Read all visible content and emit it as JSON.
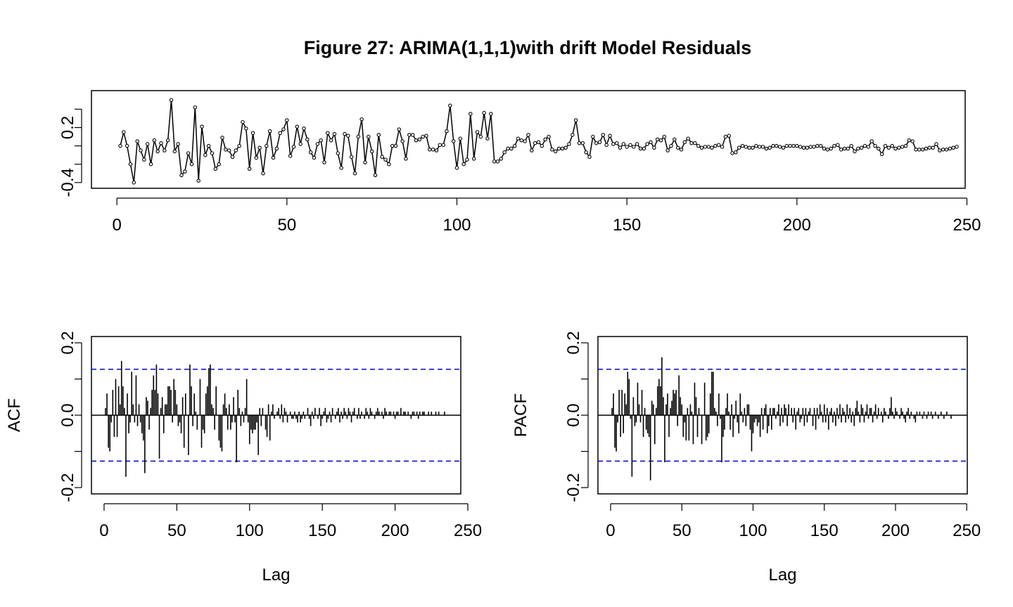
{
  "figure": {
    "title": "Figure 27: ARIMA(1,1,1)with drift Model Residuals"
  },
  "chart_data": [
    {
      "type": "line",
      "title": "",
      "xlabel": "",
      "ylabel": "",
      "xlim": [
        1,
        241
      ],
      "ylim": [
        -0.42,
        0.56
      ],
      "x_ticks": [
        0,
        50,
        100,
        150,
        200,
        250
      ],
      "y_ticks": [
        -0.4,
        -0.2,
        0.0,
        0.2,
        0.4
      ],
      "y_tick_labels": [
        "-0.4",
        "",
        "",
        "0.2",
        ""
      ],
      "grid": false,
      "markers": "open-circle",
      "series": [
        {
          "values": [
            0.0,
            0.15,
            0.0,
            -0.2,
            -0.4,
            0.05,
            -0.05,
            -0.15,
            0.02,
            -0.2,
            0.06,
            -0.06,
            0.03,
            -0.05,
            0.06,
            0.5,
            -0.06,
            0.02,
            -0.32,
            -0.28,
            -0.08,
            -0.2,
            0.42,
            -0.38,
            0.21,
            -0.1,
            0.0,
            -0.08,
            -0.25,
            -0.2,
            0.09,
            -0.04,
            -0.05,
            -0.12,
            -0.05,
            0.0,
            0.26,
            0.19,
            -0.25,
            0.14,
            -0.13,
            -0.02,
            -0.3,
            0.0,
            0.16,
            -0.13,
            -0.03,
            0.14,
            0.18,
            0.28,
            -0.11,
            -0.01,
            0.21,
            0.02,
            0.19,
            0.07,
            -0.07,
            -0.13,
            0.02,
            0.06,
            -0.18,
            0.14,
            0.06,
            0.13,
            -0.08,
            -0.24,
            0.13,
            0.11,
            -0.12,
            -0.3,
            0.1,
            0.29,
            -0.18,
            0.1,
            -0.06,
            -0.32,
            0.12,
            -0.12,
            -0.15,
            -0.2,
            0.0,
            0.0,
            0.18,
            0.05,
            -0.14,
            0.12,
            0.12,
            0.06,
            0.07,
            0.1,
            0.11,
            -0.04,
            -0.04,
            -0.05,
            0.01,
            0.01,
            0.16,
            0.44,
            0.05,
            -0.24,
            0.08,
            -0.2,
            -0.15,
            0.35,
            -0.14,
            0.15,
            0.1,
            0.36,
            0.08,
            0.35,
            -0.17,
            -0.17,
            -0.14,
            -0.07,
            -0.03,
            -0.03,
            0.0,
            0.08,
            0.06,
            0.05,
            0.12,
            -0.05,
            0.03,
            0.04,
            0.0,
            0.07,
            0.1,
            -0.04,
            -0.06,
            -0.03,
            -0.03,
            -0.02,
            0.02,
            0.12,
            0.28,
            0.03,
            0.03,
            -0.07,
            -0.12,
            0.1,
            0.03,
            0.04,
            0.12,
            0.01,
            0.11,
            0.02,
            0.03,
            -0.02,
            0.02,
            -0.01,
            0.01,
            -0.01,
            0.02,
            -0.03,
            -0.03,
            0.02,
            0.04,
            -0.02,
            0.07,
            0.06,
            0.1,
            -0.05,
            0.0,
            0.07,
            -0.02,
            -0.04,
            0.04,
            0.08,
            0.03,
            0.03,
            0.0,
            -0.02,
            -0.01,
            -0.01,
            -0.02,
            0.0,
            0.01,
            -0.01,
            0.1,
            0.11,
            -0.08,
            -0.07,
            -0.02,
            0.0,
            -0.01,
            -0.02,
            -0.02,
            0.0,
            -0.01,
            -0.01,
            -0.03,
            -0.02,
            0.0,
            0.0,
            -0.01,
            -0.02,
            0.0,
            0.0,
            0.0,
            0.0,
            -0.01,
            -0.02,
            -0.02,
            -0.01,
            -0.01,
            0.0,
            0.0,
            -0.03,
            -0.04,
            -0.03,
            0.0,
            0.01,
            -0.04,
            -0.03,
            -0.03,
            0.0,
            -0.06,
            -0.03,
            -0.02,
            0.0,
            -0.01,
            0.05,
            0.0,
            -0.03,
            -0.09,
            0.0,
            -0.02,
            0.0,
            -0.03,
            -0.02,
            -0.01,
            0.0,
            0.06,
            0.05,
            -0.04,
            -0.04,
            -0.04,
            -0.03,
            -0.02,
            -0.02,
            0.02,
            -0.05,
            -0.04,
            -0.04,
            -0.03,
            -0.02,
            -0.01
          ]
        }
      ]
    },
    {
      "type": "bar",
      "title": "",
      "xlabel": "Lag",
      "ylabel": "ACF",
      "xlim": [
        1,
        235
      ],
      "ylim": [
        -0.2,
        0.2
      ],
      "x_ticks": [
        0,
        50,
        100,
        150,
        200,
        250
      ],
      "y_ticks": [
        -0.2,
        -0.1,
        0.0,
        0.1,
        0.2
      ],
      "y_tick_labels": [
        "-0.2",
        "",
        "0.0",
        "",
        "0.2"
      ],
      "confidence_band": 0.127,
      "confidence_color": "#0000cc",
      "grid": false,
      "values": [
        0.02,
        0.06,
        -0.09,
        -0.1,
        -0.02,
        0.07,
        -0.06,
        0.1,
        -0.06,
        0.08,
        0.03,
        0.15,
        0.08,
        0.02,
        -0.17,
        0.06,
        -0.05,
        -0.02,
        0.12,
        0.03,
        -0.02,
        0.11,
        -0.03,
        0.03,
        -0.02,
        -0.05,
        -0.07,
        -0.16,
        0.05,
        0.04,
        -0.04,
        0.02,
        0.07,
        0.11,
        0.07,
        0.14,
        0.06,
        -0.12,
        0.02,
        0.05,
        -0.05,
        0.03,
        0.03,
        0.08,
        0.08,
        0.07,
        -0.02,
        0.1,
        0.07,
        0.03,
        -0.03,
        -0.02,
        -0.05,
        0.05,
        -0.09,
        0.06,
        0.0,
        -0.11,
        0.14,
        0.08,
        -0.03,
        0.06,
        0.01,
        -0.04,
        0.0,
        0.1,
        -0.09,
        -0.04,
        -0.05,
        0.06,
        0.08,
        0.13,
        0.14,
        0.03,
        0.02,
        -0.04,
        0.08,
        0.0,
        -0.07,
        -0.09,
        -0.1,
        0.03,
        0.06,
        0.02,
        -0.04,
        0.03,
        -0.04,
        -0.02,
        0.05,
        -0.02,
        -0.13,
        0.07,
        0.02,
        -0.03,
        0.01,
        -0.02,
        0.02,
        0.1,
        -0.02,
        -0.08,
        -0.04,
        -0.05,
        -0.04,
        -0.04,
        -0.02,
        -0.11,
        0.02,
        -0.03,
        0.02,
        0.0,
        -0.04,
        -0.06,
        0.03,
        -0.07,
        0.01,
        0.03,
        -0.01,
        0.0,
        0.01,
        0.02,
        -0.01,
        0.03,
        -0.02,
        0.02,
        0.01,
        -0.02,
        0.0,
        0.01,
        -0.01,
        -0.01,
        0.01,
        -0.01,
        -0.02,
        0.01,
        -0.02,
        -0.01,
        0.01,
        -0.01,
        0.0,
        0.02,
        -0.01,
        -0.03,
        0.01,
        -0.01,
        0.02,
        0.0,
        -0.01,
        0.02,
        -0.03,
        -0.01,
        0.01,
        0.02,
        -0.02,
        -0.01,
        0.01,
        -0.02,
        0.02,
        0.0,
        -0.01,
        0.01,
        0.02,
        -0.02,
        0.01,
        -0.01,
        0.02,
        0.01,
        -0.01,
        0.02,
        0.01,
        -0.02,
        0.01,
        0.02,
        0.0,
        -0.01,
        0.02,
        -0.01,
        0.01,
        0.0,
        -0.01,
        0.02,
        0.01,
        -0.01,
        0.02,
        0.01,
        0.0,
        -0.01,
        0.01,
        0.02,
        0.01,
        0.0,
        0.01,
        -0.01,
        0.02,
        0.01,
        0.0,
        0.01,
        0.01,
        0.0,
        0.01,
        -0.01,
        0.01,
        0.01,
        0.0,
        0.02,
        0.0,
        0.01,
        0.01,
        0.0,
        0.01,
        0.0,
        -0.01,
        0.01,
        0.01,
        0.0,
        0.01,
        -0.01,
        0.01,
        0.0,
        0.01,
        0.01,
        0.0,
        0.0,
        0.01,
        0.0,
        0.01,
        0.0,
        0.0,
        0.01,
        0.0,
        0.01,
        0.0,
        0.0,
        0.0,
        0.01,
        0.0,
        0.0
      ]
    },
    {
      "type": "bar",
      "title": "",
      "xlabel": "Lag",
      "ylabel": "PACF",
      "xlim": [
        1,
        240
      ],
      "ylim": [
        -0.2,
        0.2
      ],
      "x_ticks": [
        0,
        50,
        100,
        150,
        200,
        250
      ],
      "y_ticks": [
        -0.2,
        -0.1,
        0.0,
        0.1,
        0.2
      ],
      "y_tick_labels": [
        "-0.2",
        "",
        "0.0",
        "",
        "0.2"
      ],
      "confidence_band": 0.127,
      "confidence_color": "#0000cc",
      "grid": false,
      "values": [
        0.02,
        0.06,
        -0.09,
        -0.1,
        -0.02,
        0.07,
        -0.06,
        0.07,
        -0.05,
        0.06,
        0.03,
        0.12,
        0.1,
        -0.01,
        -0.17,
        0.05,
        -0.03,
        -0.02,
        0.09,
        0.03,
        -0.02,
        0.07,
        -0.06,
        0.02,
        -0.04,
        -0.05,
        -0.06,
        -0.18,
        0.04,
        0.03,
        -0.08,
        0.02,
        0.08,
        0.1,
        0.08,
        0.16,
        0.05,
        -0.13,
        0.03,
        0.06,
        -0.06,
        0.02,
        0.04,
        0.07,
        0.06,
        0.07,
        -0.03,
        0.11,
        0.05,
        0.03,
        -0.06,
        -0.02,
        -0.07,
        0.02,
        -0.07,
        0.03,
        0.01,
        -0.08,
        0.09,
        0.05,
        -0.06,
        0.02,
        0.0,
        -0.08,
        0.0,
        0.09,
        -0.07,
        -0.06,
        -0.05,
        0.06,
        0.12,
        0.12,
        0.02,
        0.01,
        -0.03,
        0.06,
        -0.01,
        -0.13,
        -0.06,
        -0.04,
        0.02,
        0.06,
        0.01,
        -0.04,
        0.03,
        -0.06,
        -0.01,
        0.04,
        -0.02,
        -0.05,
        0.06,
        0.01,
        -0.02,
        0.02,
        -0.03,
        0.03,
        0.03,
        -0.04,
        -0.1,
        -0.05,
        -0.02,
        -0.01,
        -0.03,
        -0.02,
        -0.06,
        0.02,
        -0.04,
        0.02,
        0.03,
        -0.05,
        -0.03,
        0.02,
        -0.04,
        0.02,
        0.02,
        -0.01,
        0.01,
        0.03,
        -0.03,
        0.02,
        -0.02,
        0.03,
        0.02,
        -0.03,
        0.03,
        0.0,
        0.02,
        -0.02,
        0.02,
        -0.04,
        0.01,
        0.02,
        -0.02,
        -0.01,
        0.02,
        -0.03,
        0.02,
        -0.02,
        0.01,
        0.02,
        0.0,
        -0.03,
        0.02,
        -0.04,
        0.02,
        -0.01,
        0.03,
        0.01,
        -0.02,
        0.03,
        -0.02,
        0.02,
        -0.04,
        0.01,
        0.02,
        -0.02,
        0.01,
        -0.03,
        0.02,
        -0.01,
        0.03,
        -0.02,
        0.02,
        0.01,
        -0.02,
        0.03,
        -0.01,
        0.02,
        -0.02,
        0.01,
        -0.03,
        0.02,
        0.04,
        0.01,
        -0.02,
        0.03,
        0.02,
        -0.02,
        0.01,
        0.03,
        -0.01,
        0.02,
        0.02,
        -0.02,
        0.01,
        0.03,
        -0.01,
        0.02,
        0.0,
        0.01,
        -0.02,
        0.02,
        0.01,
        0.0,
        -0.01,
        0.02,
        0.05,
        0.01,
        -0.01,
        0.02,
        0.01,
        0.0,
        -0.01,
        0.02,
        0.01,
        -0.01,
        -0.02,
        0.01,
        0.02,
        -0.01,
        0.01,
        0.0,
        -0.01,
        -0.02,
        0.01,
        0.0,
        0.01,
        0.0,
        -0.01,
        0.01,
        0.0,
        -0.01,
        0.01,
        0.0,
        0.01,
        -0.01,
        0.0,
        0.01,
        0.0,
        -0.01,
        0.0,
        0.01,
        0.0,
        -0.01,
        0.0,
        0.01,
        0.0,
        0.0,
        -0.01,
        0.0,
        0.0,
        0.0
      ]
    }
  ]
}
